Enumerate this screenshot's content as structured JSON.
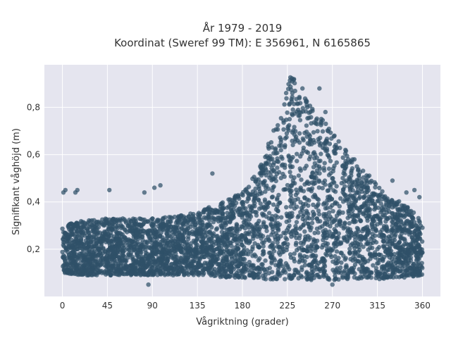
{
  "chart_data": {
    "type": "scatter",
    "title_lines": [
      "År 1979 - 2019",
      "Koordinat (Sweref 99 TM): E 356961, N 6165865"
    ],
    "xlabel": "Vågriktning (grader)",
    "ylabel": "Signifikant våghöjd (m)",
    "xlim": [
      -18,
      378
    ],
    "ylim": [
      0,
      0.98
    ],
    "xticks": [
      0,
      45,
      90,
      135,
      180,
      225,
      270,
      315,
      360
    ],
    "xtick_labels": [
      "0",
      "45",
      "90",
      "135",
      "180",
      "225",
      "270",
      "315",
      "360"
    ],
    "yticks": [
      0.2,
      0.4,
      0.6,
      0.8
    ],
    "ytick_labels": [
      "0,2",
      "0,4",
      "0,6",
      "0,8"
    ],
    "grid": true,
    "legend": "none",
    "colors": {
      "marker": "#2f5068",
      "plot_background": "#e5e5ef",
      "grid": "#ffffff"
    },
    "envelope": {
      "x": [
        0,
        20,
        45,
        90,
        135,
        160,
        180,
        200,
        215,
        222,
        228,
        235,
        250,
        270,
        290,
        310,
        330,
        345,
        360
      ],
      "y_low": [
        0.1,
        0.09,
        0.09,
        0.09,
        0.09,
        0.08,
        0.08,
        0.07,
        0.07,
        0.07,
        0.07,
        0.07,
        0.07,
        0.07,
        0.07,
        0.07,
        0.08,
        0.08,
        0.09
      ],
      "y_high": [
        0.3,
        0.32,
        0.33,
        0.33,
        0.36,
        0.4,
        0.44,
        0.58,
        0.75,
        0.86,
        0.94,
        0.9,
        0.8,
        0.7,
        0.58,
        0.5,
        0.42,
        0.38,
        0.32
      ]
    },
    "outliers": [
      {
        "x": 1,
        "y": 0.44
      },
      {
        "x": 3,
        "y": 0.45
      },
      {
        "x": 13,
        "y": 0.44
      },
      {
        "x": 15,
        "y": 0.45
      },
      {
        "x": 47,
        "y": 0.45
      },
      {
        "x": 82,
        "y": 0.44
      },
      {
        "x": 92,
        "y": 0.46
      },
      {
        "x": 98,
        "y": 0.47
      },
      {
        "x": 150,
        "y": 0.52
      },
      {
        "x": 305,
        "y": 0.48
      },
      {
        "x": 330,
        "y": 0.49
      },
      {
        "x": 344,
        "y": 0.44
      },
      {
        "x": 352,
        "y": 0.45
      },
      {
        "x": 357,
        "y": 0.42
      },
      {
        "x": 240,
        "y": 0.88
      },
      {
        "x": 257,
        "y": 0.88
      },
      {
        "x": 263,
        "y": 0.78
      },
      {
        "x": 272,
        "y": 0.68
      },
      {
        "x": 283,
        "y": 0.62
      },
      {
        "x": 292,
        "y": 0.58
      },
      {
        "x": 86,
        "y": 0.05
      },
      {
        "x": 270,
        "y": 0.05
      }
    ]
  }
}
